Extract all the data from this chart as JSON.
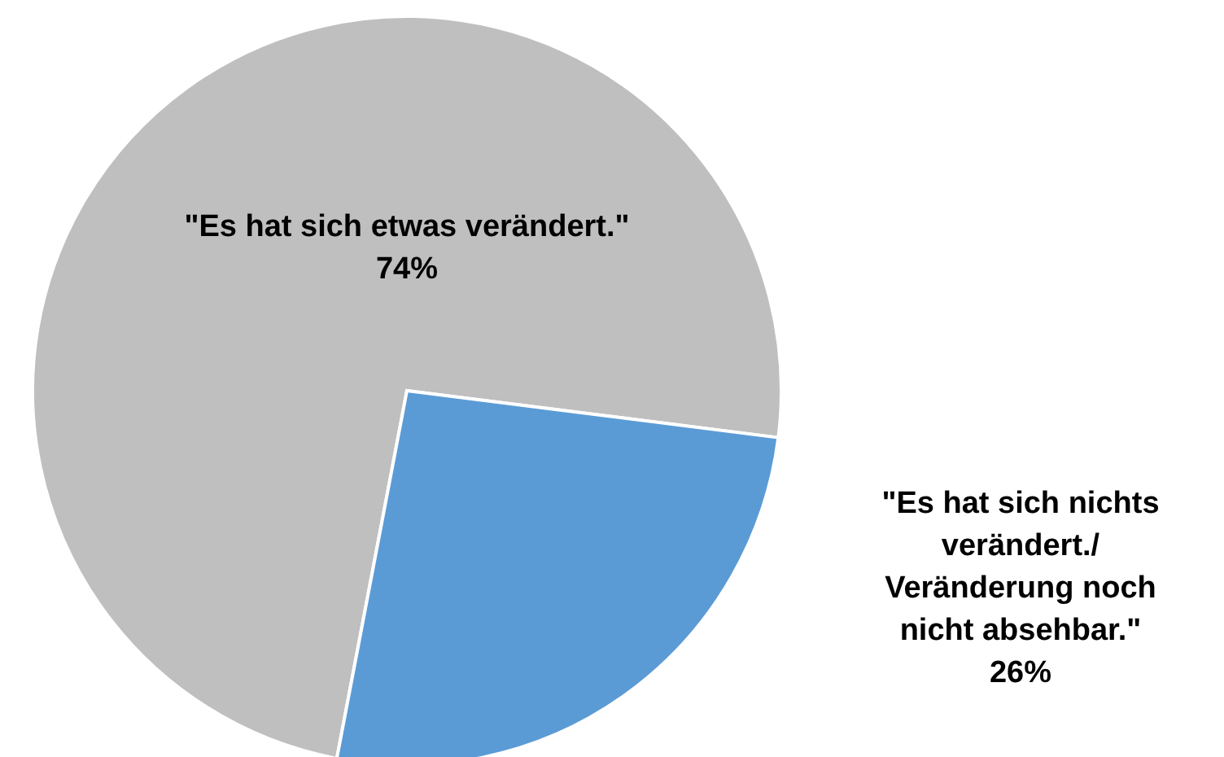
{
  "chart_data": {
    "type": "pie",
    "categories": [
      "\"Es hat sich etwas verändert.\"",
      "\"Es hat sich nichts verändert./ Veränderung noch nicht absehbar.\""
    ],
    "values": [
      74,
      26
    ],
    "colors": [
      "#bfbfbf",
      "#5b9bd5"
    ],
    "value_labels": [
      "74%",
      "26%"
    ]
  }
}
